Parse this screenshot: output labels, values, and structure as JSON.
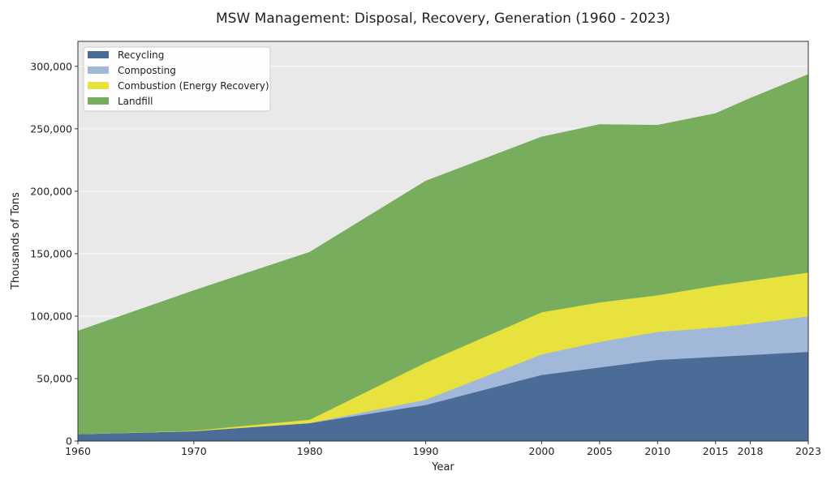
{
  "chart_data": {
    "type": "area",
    "stacked": true,
    "title": "MSW Management: Disposal, Recovery, Generation (1960 - 2023)",
    "xlabel": "Year",
    "ylabel": "Thousands of Tons",
    "x": [
      1960,
      1970,
      1980,
      1990,
      2000,
      2005,
      2010,
      2015,
      2018,
      2023
    ],
    "xticks": [
      "1960",
      "1970",
      "1980",
      "1990",
      "2000",
      "2005",
      "2010",
      "2015",
      "2018",
      "2023"
    ],
    "xlim": [
      1960,
      2023
    ],
    "ylim": [
      0,
      320000
    ],
    "yticks": [
      0,
      50000,
      100000,
      150000,
      200000,
      250000,
      300000
    ],
    "ytick_labels": [
      "0",
      "50,000",
      "100,000",
      "150,000",
      "200,000",
      "250,000",
      "300,000"
    ],
    "grid": true,
    "legend_position": "top-left",
    "background": "#e9e9e9",
    "series": [
      {
        "name": "Recycling",
        "color": "#4c6c98",
        "values": [
          5600,
          8000,
          14500,
          29000,
          53000,
          59000,
          65000,
          67500,
          69000,
          71500
        ]
      },
      {
        "name": "Composting",
        "color": "#a2b8d9",
        "values": [
          0,
          0,
          0,
          4200,
          16500,
          20500,
          22500,
          23500,
          25000,
          28500
        ]
      },
      {
        "name": "Combustion (Energy Recovery)",
        "color": "#e8e23f",
        "values": [
          0,
          400,
          2700,
          29700,
          33700,
          31600,
          29300,
          33500,
          34500,
          35000
        ]
      },
      {
        "name": "Landfill",
        "color": "#77ad5d",
        "values": [
          82500,
          112100,
          134000,
          145300,
          140300,
          142300,
          136100,
          137700,
          146000,
          158500
        ]
      }
    ]
  }
}
